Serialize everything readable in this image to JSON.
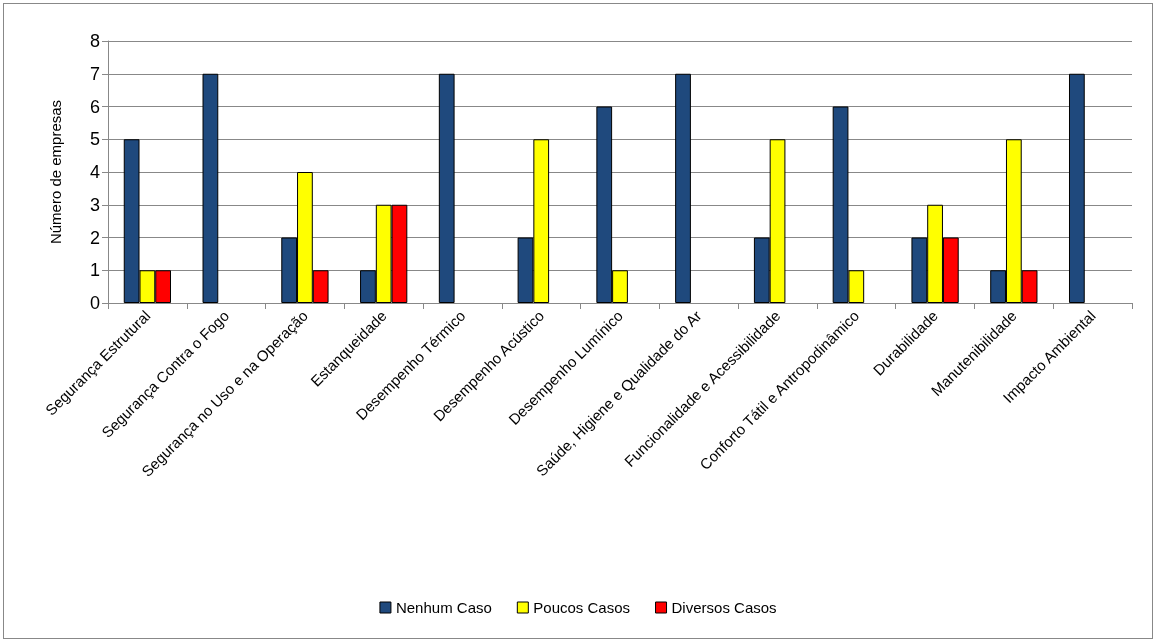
{
  "chart_data": {
    "type": "bar",
    "ylabel": "Número de empresas",
    "categories": [
      "Segurança Estrutural",
      "Segurança Contra o Fogo",
      "Segurança no Uso e na Operação",
      "Estanqueidade",
      "Desempenho Térmico",
      "Desempenho Acústico",
      "Desempenho Lumínico",
      "Saúde, Higiene e Qualidade do Ar",
      "Funcionalidade e Acessibilidade",
      "Conforto Tátil e Antropodinâmico",
      "Durabilidade",
      "Manutenibilidade",
      "Impacto Ambiental"
    ],
    "series": [
      {
        "name": "Nenhum Caso",
        "color": "#1f497d",
        "values": [
          5,
          7,
          2,
          1,
          7,
          2,
          6,
          7,
          2,
          6,
          2,
          1,
          7
        ]
      },
      {
        "name": "Poucos Casos",
        "color": "#ffff00",
        "values": [
          1,
          0,
          4,
          3,
          0,
          5,
          1,
          0,
          5,
          1,
          3,
          5,
          0
        ]
      },
      {
        "name": "Diversos Casos",
        "color": "#ff0000",
        "values": [
          1,
          0,
          1,
          3,
          0,
          0,
          0,
          0,
          0,
          0,
          2,
          1,
          0
        ]
      }
    ],
    "ylim": [
      0,
      8
    ],
    "yticks": [
      0,
      1,
      2,
      3,
      4,
      5,
      6,
      7,
      8
    ],
    "grid": "y",
    "legend": "bottom"
  }
}
